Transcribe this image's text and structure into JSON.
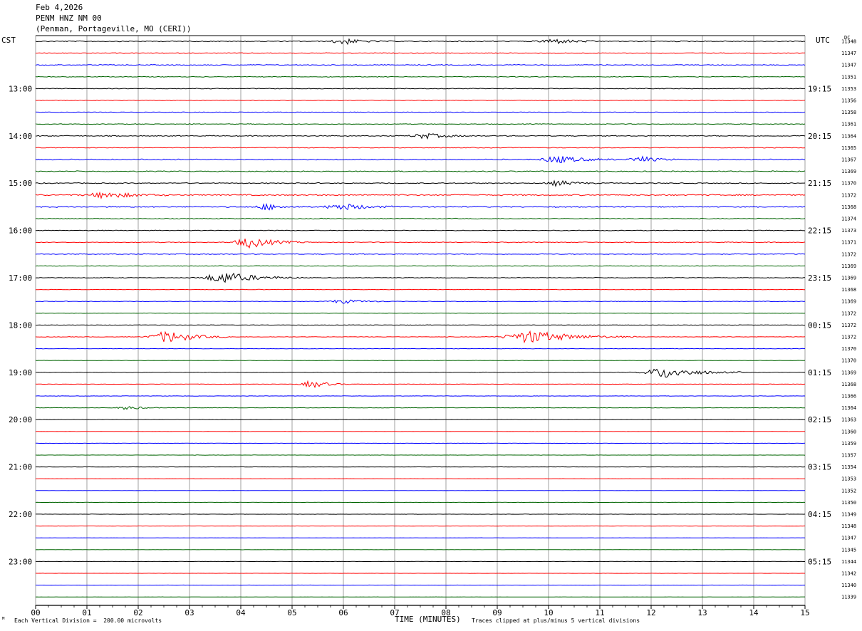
{
  "header": {
    "date": "Feb 4,2026",
    "station": "PENM HNZ NM 00",
    "location": "(Penman, Portageville, MO (CERI))"
  },
  "left_label": "CST",
  "right_label": "UTC",
  "dc_label": "DC",
  "footer": {
    "scale_note": "Each Vertical Division =  200.00 microvolts",
    "clip_note": "Traces clipped at plus/minus 5 vertical divisions",
    "corner_mark": "ᴹ"
  },
  "colors": {
    "cycle": [
      "#000000",
      "#ff0000",
      "#0000ff",
      "#006400"
    ],
    "grid": "#888888"
  },
  "chart_data": {
    "type": "line",
    "xlabel": "TIME (MINUTES)",
    "x_ticks": [
      "00",
      "01",
      "02",
      "03",
      "04",
      "05",
      "06",
      "07",
      "08",
      "09",
      "10",
      "11",
      "12",
      "13",
      "14",
      "15"
    ],
    "xlim": [
      0,
      15
    ],
    "row_count": 48,
    "left_time_labels": [
      {
        "row": 4,
        "label": "13:00"
      },
      {
        "row": 8,
        "label": "14:00"
      },
      {
        "row": 12,
        "label": "15:00"
      },
      {
        "row": 16,
        "label": "16:00"
      },
      {
        "row": 20,
        "label": "17:00"
      },
      {
        "row": 24,
        "label": "18:00"
      },
      {
        "row": 28,
        "label": "19:00"
      },
      {
        "row": 32,
        "label": "20:00"
      },
      {
        "row": 36,
        "label": "21:00"
      },
      {
        "row": 40,
        "label": "22:00"
      },
      {
        "row": 44,
        "label": "23:00"
      }
    ],
    "right_time_labels": [
      {
        "row": 4,
        "label": "19:15"
      },
      {
        "row": 8,
        "label": "20:15"
      },
      {
        "row": 12,
        "label": "21:15"
      },
      {
        "row": 16,
        "label": "22:15"
      },
      {
        "row": 20,
        "label": "23:15"
      },
      {
        "row": 24,
        "label": "00:15"
      },
      {
        "row": 28,
        "label": "01:15"
      },
      {
        "row": 32,
        "label": "02:15"
      },
      {
        "row": 36,
        "label": "03:15"
      },
      {
        "row": 40,
        "label": "04:15"
      },
      {
        "row": 44,
        "label": "05:15"
      }
    ],
    "dc_offsets": [
      11348,
      11347,
      11347,
      11351,
      11353,
      11356,
      11358,
      11361,
      11364,
      11365,
      11367,
      11369,
      11370,
      11372,
      11368,
      11374,
      11373,
      11371,
      11372,
      11369,
      11369,
      11368,
      11369,
      11372,
      11372,
      11372,
      11370,
      11370,
      11369,
      11368,
      11366,
      11364,
      11363,
      11360,
      11359,
      11357,
      11354,
      11353,
      11352,
      11350,
      11349,
      11348,
      11347,
      11345,
      11344,
      11342,
      11340,
      11339
    ],
    "noise_levels": [
      0.55,
      0.5,
      0.5,
      0.4,
      0.45,
      0.4,
      0.4,
      0.4,
      0.55,
      0.45,
      0.6,
      0.6,
      0.55,
      0.8,
      0.75,
      0.45,
      0.4,
      0.45,
      0.5,
      0.35,
      0.35,
      0.25,
      0.3,
      0.25,
      0.3,
      0.3,
      0.25,
      0.2,
      0.3,
      0.25,
      0.2,
      0.25,
      0.2,
      0.15,
      0.15,
      0.15,
      0.12,
      0.15,
      0.12,
      0.12,
      0.15,
      0.12,
      0.12,
      0.12,
      0.12,
      0.12,
      0.15,
      0.12
    ],
    "events": [
      {
        "row": 0,
        "minute": 6.0,
        "amplitude": 1.5,
        "duration": 0.3
      },
      {
        "row": 0,
        "minute": 10.1,
        "amplitude": 1.2,
        "duration": 0.4
      },
      {
        "row": 8,
        "minute": 7.6,
        "amplitude": 1.2,
        "duration": 0.4
      },
      {
        "row": 10,
        "minute": 10.2,
        "amplitude": 1.5,
        "duration": 0.5
      },
      {
        "row": 10,
        "minute": 11.8,
        "amplitude": 1.4,
        "duration": 0.3
      },
      {
        "row": 12,
        "minute": 10.2,
        "amplitude": 1.2,
        "duration": 0.3
      },
      {
        "row": 13,
        "minute": 1.4,
        "amplitude": 1.4,
        "duration": 0.5
      },
      {
        "row": 14,
        "minute": 4.5,
        "amplitude": 1.3,
        "duration": 0.3
      },
      {
        "row": 14,
        "minute": 6.0,
        "amplitude": 1.3,
        "duration": 0.5
      },
      {
        "row": 17,
        "minute": 4.2,
        "amplitude": 2.4,
        "duration": 0.45
      },
      {
        "row": 20,
        "minute": 3.7,
        "amplitude": 2.5,
        "duration": 0.6
      },
      {
        "row": 22,
        "minute": 6.0,
        "amplitude": 0.9,
        "duration": 0.4
      },
      {
        "row": 25,
        "minute": 2.6,
        "amplitude": 2.6,
        "duration": 0.5
      },
      {
        "row": 25,
        "minute": 9.7,
        "amplitude": 2.7,
        "duration": 0.8
      },
      {
        "row": 28,
        "minute": 12.3,
        "amplitude": 2.4,
        "duration": 0.6
      },
      {
        "row": 29,
        "minute": 5.4,
        "amplitude": 1.6,
        "duration": 0.3
      },
      {
        "row": 31,
        "minute": 1.8,
        "amplitude": 0.8,
        "duration": 0.3
      }
    ]
  }
}
